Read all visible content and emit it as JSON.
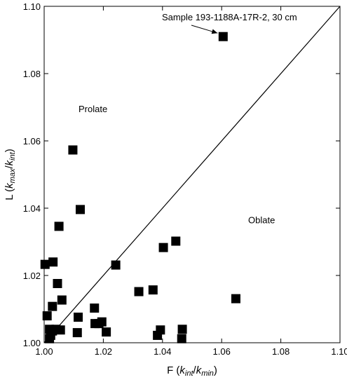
{
  "chart_data": {
    "type": "scatter",
    "xlabel": {
      "base": "F (",
      "k1": "k",
      "sub1": "int",
      "slash": "/",
      "k2": "k",
      "sub2": "min",
      "close": ")"
    },
    "ylabel": {
      "base": "L (",
      "k1": "k",
      "sub1": "max",
      "slash": "/",
      "k2": "k",
      "sub2": "int",
      "close": ")"
    },
    "xlim": [
      1.0,
      1.1
    ],
    "ylim": [
      1.0,
      1.1
    ],
    "xticks": [
      1.0,
      1.02,
      1.04,
      1.06,
      1.08,
      1.1
    ],
    "yticks": [
      1.0,
      1.02,
      1.04,
      1.06,
      1.08,
      1.1
    ],
    "xtick_labels": [
      "1.00",
      "1.02",
      "1.04",
      "1.06",
      "1.08",
      "1.10"
    ],
    "ytick_labels": [
      "1.00",
      "1.02",
      "1.04",
      "1.06",
      "1.08",
      "1.10"
    ],
    "reference_line": {
      "from": [
        1.0,
        1.0
      ],
      "to": [
        1.1,
        1.1
      ]
    },
    "region_labels": [
      {
        "text": "Prolate",
        "x": 1.0165,
        "y": 1.0685
      },
      {
        "text": "Oblate",
        "x": 1.0735,
        "y": 1.0355
      }
    ],
    "annotation": {
      "text": "Sample 193-1188A-17R-2, 30 cm",
      "target": [
        1.0605,
        1.091
      ]
    },
    "points": [
      {
        "x": 1.0003,
        "y": 1.0233
      },
      {
        "x": 1.001,
        "y": 1.008
      },
      {
        "x": 1.0018,
        "y": 1.0012
      },
      {
        "x": 1.0018,
        "y": 1.004
      },
      {
        "x": 1.0022,
        "y": 1.0022
      },
      {
        "x": 1.0028,
        "y": 1.0035
      },
      {
        "x": 1.0028,
        "y": 1.0108
      },
      {
        "x": 1.003,
        "y": 1.024
      },
      {
        "x": 1.004,
        "y": 1.004
      },
      {
        "x": 1.0045,
        "y": 1.0176
      },
      {
        "x": 1.005,
        "y": 1.0346
      },
      {
        "x": 1.0055,
        "y": 1.0038
      },
      {
        "x": 1.006,
        "y": 1.0127
      },
      {
        "x": 1.0097,
        "y": 1.0573
      },
      {
        "x": 1.0112,
        "y": 1.003
      },
      {
        "x": 1.0115,
        "y": 1.0076
      },
      {
        "x": 1.0122,
        "y": 1.0396
      },
      {
        "x": 1.017,
        "y": 1.0103
      },
      {
        "x": 1.0172,
        "y": 1.0057
      },
      {
        "x": 1.0185,
        "y": 1.0057
      },
      {
        "x": 1.0195,
        "y": 1.0062
      },
      {
        "x": 1.021,
        "y": 1.0032
      },
      {
        "x": 1.0242,
        "y": 1.0231
      },
      {
        "x": 1.032,
        "y": 1.0152
      },
      {
        "x": 1.0368,
        "y": 1.0157
      },
      {
        "x": 1.0383,
        "y": 1.0022
      },
      {
        "x": 1.0393,
        "y": 1.0038
      },
      {
        "x": 1.0403,
        "y": 1.0283
      },
      {
        "x": 1.0445,
        "y": 1.0302
      },
      {
        "x": 1.0465,
        "y": 1.0012
      },
      {
        "x": 1.0467,
        "y": 1.004
      },
      {
        "x": 1.0605,
        "y": 1.091
      },
      {
        "x": 1.0648,
        "y": 1.0131
      }
    ]
  }
}
